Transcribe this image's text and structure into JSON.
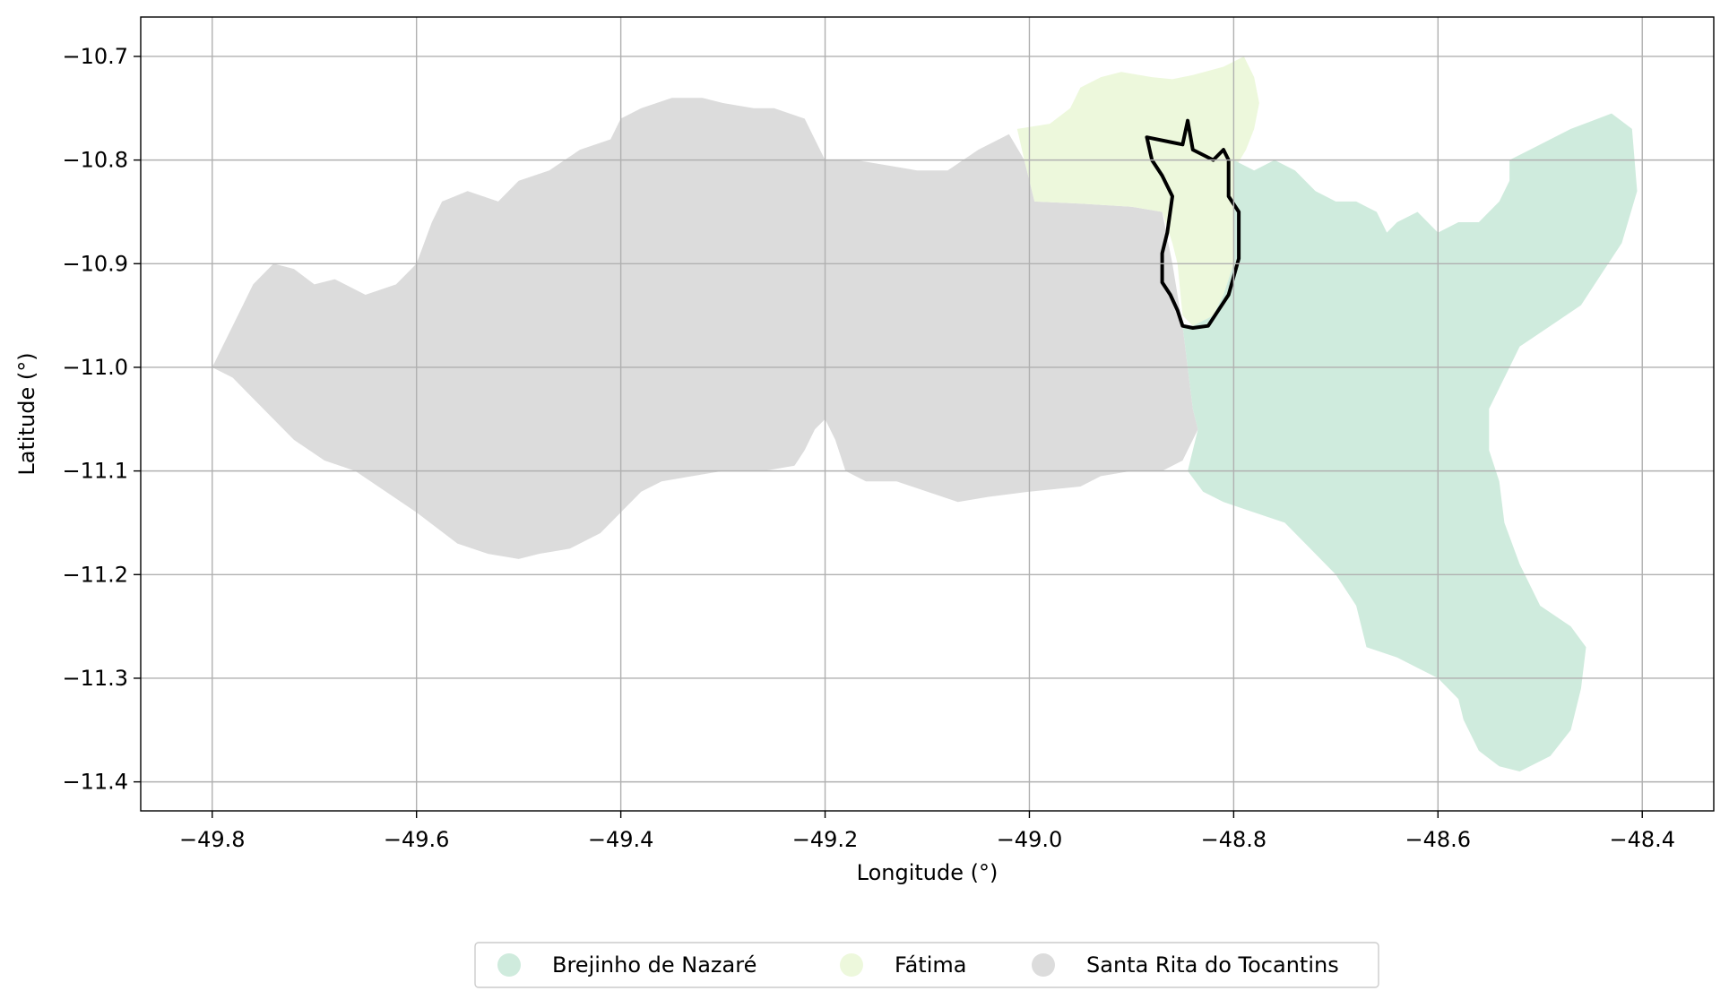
{
  "chart_data": {
    "type": "map",
    "xlabel": "Longitude (°)",
    "ylabel": "Latitude (°)",
    "xlim": [
      -49.87,
      -48.33
    ],
    "ylim": [
      -11.428,
      -10.662
    ],
    "xticks": [
      -49.8,
      -49.6,
      -49.4,
      -49.2,
      -49.0,
      -48.8,
      -48.6,
      -48.4
    ],
    "xtick_labels": [
      "−49.8",
      "−49.6",
      "−49.4",
      "−49.2",
      "−49.0",
      "−48.8",
      "−48.6",
      "−48.4"
    ],
    "yticks": [
      -10.7,
      -10.8,
      -10.9,
      -11.0,
      -11.1,
      -11.2,
      -11.3,
      -11.4
    ],
    "ytick_labels": [
      "−10.7",
      "−10.8",
      "−10.9",
      "−11.0",
      "−11.1",
      "−11.2",
      "−11.3",
      "−11.4"
    ],
    "grid": true,
    "legend_position": "bottom-center",
    "regions": [
      {
        "name": "Santa Rita do Tocantins",
        "color": "#dcdcdc",
        "polygon": [
          [
            -49.8,
            -11.0
          ],
          [
            -49.79,
            -10.98
          ],
          [
            -49.78,
            -10.96
          ],
          [
            -49.77,
            -10.94
          ],
          [
            -49.76,
            -10.92
          ],
          [
            -49.74,
            -10.9
          ],
          [
            -49.72,
            -10.905
          ],
          [
            -49.7,
            -10.92
          ],
          [
            -49.68,
            -10.915
          ],
          [
            -49.65,
            -10.93
          ],
          [
            -49.62,
            -10.92
          ],
          [
            -49.6,
            -10.9
          ],
          [
            -49.585,
            -10.86
          ],
          [
            -49.575,
            -10.84
          ],
          [
            -49.55,
            -10.83
          ],
          [
            -49.52,
            -10.84
          ],
          [
            -49.5,
            -10.82
          ],
          [
            -49.47,
            -10.81
          ],
          [
            -49.44,
            -10.79
          ],
          [
            -49.41,
            -10.78
          ],
          [
            -49.4,
            -10.76
          ],
          [
            -49.38,
            -10.75
          ],
          [
            -49.35,
            -10.74
          ],
          [
            -49.32,
            -10.74
          ],
          [
            -49.3,
            -10.745
          ],
          [
            -49.27,
            -10.75
          ],
          [
            -49.25,
            -10.75
          ],
          [
            -49.22,
            -10.76
          ],
          [
            -49.21,
            -10.78
          ],
          [
            -49.2,
            -10.8
          ],
          [
            -49.17,
            -10.8
          ],
          [
            -49.14,
            -10.805
          ],
          [
            -49.11,
            -10.81
          ],
          [
            -49.08,
            -10.81
          ],
          [
            -49.05,
            -10.79
          ],
          [
            -49.02,
            -10.775
          ],
          [
            -49.005,
            -10.8
          ],
          [
            -48.995,
            -10.84
          ],
          [
            -48.95,
            -10.842
          ],
          [
            -48.9,
            -10.845
          ],
          [
            -48.87,
            -10.85
          ],
          [
            -48.86,
            -10.9
          ],
          [
            -48.85,
            -10.96
          ],
          [
            -48.845,
            -11.0
          ],
          [
            -48.84,
            -11.04
          ],
          [
            -48.835,
            -11.06
          ],
          [
            -48.85,
            -11.09
          ],
          [
            -48.87,
            -11.1
          ],
          [
            -48.9,
            -11.1
          ],
          [
            -48.93,
            -11.105
          ],
          [
            -48.95,
            -11.115
          ],
          [
            -49.0,
            -11.12
          ],
          [
            -49.04,
            -11.125
          ],
          [
            -49.07,
            -11.13
          ],
          [
            -49.1,
            -11.12
          ],
          [
            -49.13,
            -11.11
          ],
          [
            -49.16,
            -11.11
          ],
          [
            -49.18,
            -11.1
          ],
          [
            -49.19,
            -11.07
          ],
          [
            -49.2,
            -11.05
          ],
          [
            -49.21,
            -11.06
          ],
          [
            -49.22,
            -11.08
          ],
          [
            -49.23,
            -11.095
          ],
          [
            -49.26,
            -11.1
          ],
          [
            -49.3,
            -11.1
          ],
          [
            -49.33,
            -11.105
          ],
          [
            -49.36,
            -11.11
          ],
          [
            -49.38,
            -11.12
          ],
          [
            -49.4,
            -11.14
          ],
          [
            -49.42,
            -11.16
          ],
          [
            -49.45,
            -11.175
          ],
          [
            -49.48,
            -11.18
          ],
          [
            -49.5,
            -11.185
          ],
          [
            -49.53,
            -11.18
          ],
          [
            -49.56,
            -11.17
          ],
          [
            -49.58,
            -11.155
          ],
          [
            -49.6,
            -11.14
          ],
          [
            -49.63,
            -11.12
          ],
          [
            -49.66,
            -11.1
          ],
          [
            -49.69,
            -11.09
          ],
          [
            -49.72,
            -11.07
          ],
          [
            -49.74,
            -11.05
          ],
          [
            -49.76,
            -11.03
          ],
          [
            -49.78,
            -11.01
          ]
        ]
      },
      {
        "name": "Fátima",
        "color": "#edf8dc",
        "polygon": [
          [
            -49.012,
            -10.77
          ],
          [
            -48.98,
            -10.765
          ],
          [
            -48.96,
            -10.75
          ],
          [
            -48.95,
            -10.73
          ],
          [
            -48.93,
            -10.72
          ],
          [
            -48.91,
            -10.715
          ],
          [
            -48.88,
            -10.72
          ],
          [
            -48.86,
            -10.722
          ],
          [
            -48.84,
            -10.718
          ],
          [
            -48.81,
            -10.71
          ],
          [
            -48.79,
            -10.7
          ],
          [
            -48.78,
            -10.72
          ],
          [
            -48.775,
            -10.745
          ],
          [
            -48.78,
            -10.77
          ],
          [
            -48.788,
            -10.79
          ],
          [
            -48.8,
            -10.81
          ],
          [
            -48.8,
            -10.86
          ],
          [
            -48.8,
            -10.9
          ],
          [
            -48.81,
            -10.93
          ],
          [
            -48.82,
            -10.95
          ],
          [
            -48.84,
            -10.96
          ],
          [
            -48.85,
            -10.95
          ],
          [
            -48.855,
            -10.9
          ],
          [
            -48.86,
            -10.88
          ],
          [
            -48.87,
            -10.85
          ],
          [
            -48.9,
            -10.845
          ],
          [
            -48.95,
            -10.842
          ],
          [
            -48.995,
            -10.84
          ],
          [
            -49.005,
            -10.8
          ]
        ]
      },
      {
        "name": "Brejinho de Nazaré",
        "color": "#cfebdd",
        "polygon": [
          [
            -48.8,
            -10.8
          ],
          [
            -48.78,
            -10.81
          ],
          [
            -48.76,
            -10.8
          ],
          [
            -48.74,
            -10.81
          ],
          [
            -48.72,
            -10.83
          ],
          [
            -48.7,
            -10.84
          ],
          [
            -48.68,
            -10.84
          ],
          [
            -48.66,
            -10.85
          ],
          [
            -48.65,
            -10.87
          ],
          [
            -48.64,
            -10.86
          ],
          [
            -48.62,
            -10.85
          ],
          [
            -48.6,
            -10.87
          ],
          [
            -48.58,
            -10.86
          ],
          [
            -48.56,
            -10.86
          ],
          [
            -48.54,
            -10.84
          ],
          [
            -48.53,
            -10.82
          ],
          [
            -48.53,
            -10.8
          ],
          [
            -48.51,
            -10.79
          ],
          [
            -48.49,
            -10.78
          ],
          [
            -48.47,
            -10.77
          ],
          [
            -48.43,
            -10.755
          ],
          [
            -48.41,
            -10.77
          ],
          [
            -48.405,
            -10.83
          ],
          [
            -48.42,
            -10.88
          ],
          [
            -48.44,
            -10.91
          ],
          [
            -48.46,
            -10.94
          ],
          [
            -48.49,
            -10.96
          ],
          [
            -48.52,
            -10.98
          ],
          [
            -48.53,
            -11.0
          ],
          [
            -48.54,
            -11.02
          ],
          [
            -48.55,
            -11.04
          ],
          [
            -48.55,
            -11.08
          ],
          [
            -48.54,
            -11.11
          ],
          [
            -48.535,
            -11.15
          ],
          [
            -48.52,
            -11.19
          ],
          [
            -48.5,
            -11.23
          ],
          [
            -48.47,
            -11.25
          ],
          [
            -48.455,
            -11.27
          ],
          [
            -48.46,
            -11.31
          ],
          [
            -48.47,
            -11.35
          ],
          [
            -48.49,
            -11.375
          ],
          [
            -48.52,
            -11.39
          ],
          [
            -48.54,
            -11.385
          ],
          [
            -48.56,
            -11.37
          ],
          [
            -48.575,
            -11.34
          ],
          [
            -48.58,
            -11.32
          ],
          [
            -48.6,
            -11.3
          ],
          [
            -48.62,
            -11.29
          ],
          [
            -48.64,
            -11.28
          ],
          [
            -48.67,
            -11.27
          ],
          [
            -48.68,
            -11.23
          ],
          [
            -48.7,
            -11.2
          ],
          [
            -48.72,
            -11.18
          ],
          [
            -48.75,
            -11.15
          ],
          [
            -48.78,
            -11.14
          ],
          [
            -48.81,
            -11.13
          ],
          [
            -48.83,
            -11.12
          ],
          [
            -48.845,
            -11.1
          ],
          [
            -48.835,
            -11.06
          ],
          [
            -48.84,
            -11.04
          ],
          [
            -48.845,
            -11.0
          ],
          [
            -48.85,
            -10.96
          ],
          [
            -48.84,
            -10.96
          ],
          [
            -48.82,
            -10.95
          ],
          [
            -48.81,
            -10.93
          ],
          [
            -48.8,
            -10.9
          ],
          [
            -48.8,
            -10.86
          ]
        ]
      }
    ],
    "outline": {
      "color": "#000000",
      "polygon": [
        [
          -48.885,
          -10.778
        ],
        [
          -48.86,
          -10.783
        ],
        [
          -48.85,
          -10.785
        ],
        [
          -48.845,
          -10.762
        ],
        [
          -48.84,
          -10.79
        ],
        [
          -48.82,
          -10.8
        ],
        [
          -48.81,
          -10.79
        ],
        [
          -48.805,
          -10.8
        ],
        [
          -48.805,
          -10.835
        ],
        [
          -48.795,
          -10.85
        ],
        [
          -48.795,
          -10.895
        ],
        [
          -48.805,
          -10.93
        ],
        [
          -48.815,
          -10.945
        ],
        [
          -48.825,
          -10.96
        ],
        [
          -48.84,
          -10.962
        ],
        [
          -48.85,
          -10.96
        ],
        [
          -48.855,
          -10.945
        ],
        [
          -48.862,
          -10.93
        ],
        [
          -48.87,
          -10.918
        ],
        [
          -48.87,
          -10.89
        ],
        [
          -48.865,
          -10.87
        ],
        [
          -48.86,
          -10.835
        ],
        [
          -48.87,
          -10.815
        ],
        [
          -48.88,
          -10.8
        ]
      ]
    },
    "legend": [
      {
        "label": "Brejinho de Nazaré",
        "color": "#cfebdd"
      },
      {
        "label": "Fátima",
        "color": "#edf8dc"
      },
      {
        "label": "Santa Rita do Tocantins",
        "color": "#dcdcdc"
      }
    ]
  }
}
